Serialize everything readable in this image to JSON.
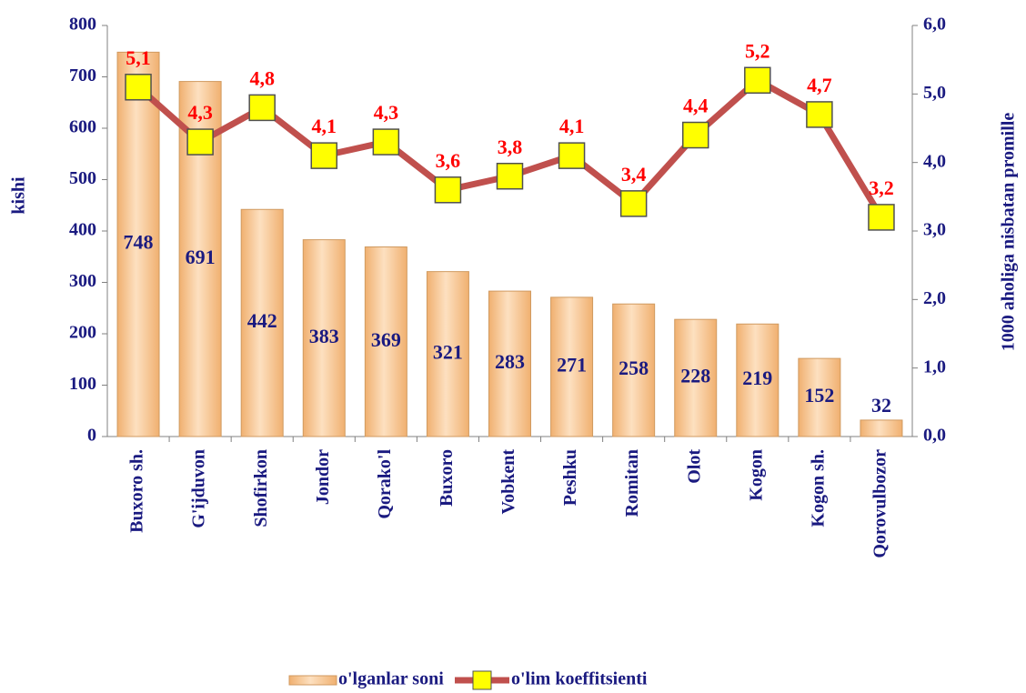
{
  "chart_data": {
    "type": "bar",
    "ylabel": "kishi",
    "y2label": "1000 aholiga nisbatan promille",
    "categories": [
      "Buxoro sh.",
      "G'ijduvon",
      "Shofirkon",
      "Jondor",
      "Qorako'l",
      "Buxoro",
      "Vobkent",
      "Peshku",
      "Romitan",
      "Olot",
      "Kogon",
      "Kogon sh.",
      "Qorovulbozor"
    ],
    "series": [
      {
        "name": "o'lganlar soni",
        "type": "bar",
        "color": "#f5c08a",
        "values": [
          748,
          691,
          442,
          383,
          369,
          321,
          283,
          271,
          258,
          228,
          219,
          152,
          32
        ]
      },
      {
        "name": "o'lim koeffitsienti",
        "type": "line",
        "axis": "y2",
        "color": "#c0504d",
        "marker_color": "#ffff00",
        "values": [
          5.1,
          4.3,
          4.8,
          4.1,
          4.3,
          3.6,
          3.8,
          4.1,
          3.4,
          4.4,
          5.2,
          4.7,
          3.2
        ],
        "value_labels": [
          "5,1",
          "4,3",
          "4,8",
          "4,1",
          "4,3",
          "3,6",
          "3,8",
          "4,1",
          "3,4",
          "4,4",
          "5,2",
          "4,7",
          "3,2"
        ]
      }
    ],
    "ylim": [
      0,
      800
    ],
    "yticks": [
      0,
      100,
      200,
      300,
      400,
      500,
      600,
      700,
      800
    ],
    "y2lim": [
      0,
      6
    ],
    "y2ticks": [
      {
        "value": 0,
        "label": "0,0"
      },
      {
        "value": 1,
        "label": "1,0"
      },
      {
        "value": 2,
        "label": "2,0"
      },
      {
        "value": 3,
        "label": "3,0"
      },
      {
        "value": 4,
        "label": "4,0"
      },
      {
        "value": 5,
        "label": "5,0"
      },
      {
        "value": 6,
        "label": "6,0"
      }
    ],
    "legend": "bottom"
  }
}
